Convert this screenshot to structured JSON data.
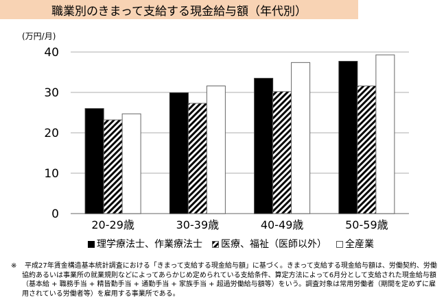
{
  "chart_data": {
    "type": "bar",
    "title": "職業別のきまって支給する現金給与額（年代別）",
    "ylabel": "(万円/月)",
    "xlabel": "",
    "ylim": [
      0,
      40
    ],
    "yticks": [
      0,
      10,
      20,
      30,
      40
    ],
    "grid": true,
    "legend_position": "bottom",
    "categories": [
      "20-29歳",
      "30-39歳",
      "40-49歳",
      "50-59歳"
    ],
    "series": [
      {
        "name": "理学療法士、作業療法士",
        "fill": "solid-black",
        "values": [
          26.0,
          29.9,
          33.5,
          37.7
        ]
      },
      {
        "name": "医療、福祉（医師以外）",
        "fill": "diagonal-hatch",
        "values": [
          23.2,
          27.3,
          30.2,
          31.6
        ]
      },
      {
        "name": "全産業",
        "fill": "white",
        "values": [
          24.7,
          31.6,
          37.4,
          39.3
        ]
      }
    ]
  },
  "colors": {
    "title_bg": "#f8d3b4",
    "grid": "#c8c8c8",
    "bar_outline": "#666666"
  },
  "footnote": {
    "mark": "※",
    "text": "平成27年賃金構造基本統計調査における「きまって支給する現金給与額」に基づく。きまって支給する現金給与額は、労働契約、労働協約あるいは事業所の就業規則などによってあらかじめ定められている支給条件、算定方法によって6月分として支給された現金給与額（基本給 + 職務手当 + 精皆勤手当 + 通勤手当 + 家族手当 + 超過労働給与額等）をいう。調査対象は常用労働者（期間を定めずに雇用されている労働者等）を雇用する事業所である。"
  }
}
